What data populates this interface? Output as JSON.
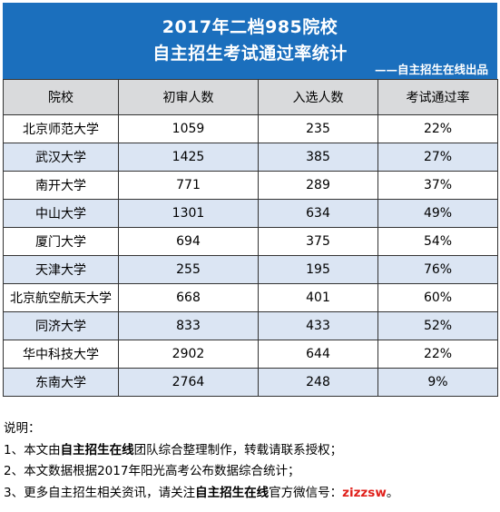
{
  "header": {
    "title_line1": "2017年二档985院校",
    "title_line2": "自主招生考试通过率统计",
    "credit": "——自主招生在线出品",
    "background_color": "#1b6fbd"
  },
  "table": {
    "columns": [
      "院校",
      "初审人数",
      "入选人数",
      "考试通过率"
    ],
    "rows": [
      [
        "北京师范大学",
        "1059",
        "235",
        "22%"
      ],
      [
        "武汉大学",
        "1425",
        "385",
        "27%"
      ],
      [
        "南开大学",
        "771",
        "289",
        "37%"
      ],
      [
        "中山大学",
        "1301",
        "634",
        "49%"
      ],
      [
        "厦门大学",
        "694",
        "375",
        "54%"
      ],
      [
        "天津大学",
        "255",
        "195",
        "76%"
      ],
      [
        "北京航空航天大学",
        "668",
        "401",
        "60%"
      ],
      [
        "同济大学",
        "833",
        "433",
        "52%"
      ],
      [
        "华中科技大学",
        "2902",
        "644",
        "22%"
      ],
      [
        "东南大学",
        "2764",
        "248",
        "9%"
      ]
    ],
    "header_color": "#d9dadc",
    "stripe_color": "#dbe5f3"
  },
  "notes": {
    "heading": "说明：",
    "line1": {
      "prefix": "1、本文由",
      "bold": "自主招生在线",
      "suffix": "团队综合整理制作，转载请联系授权；"
    },
    "line2": {
      "text": "2、本文数据根据2017年阳光高考公布数据综合统计；"
    },
    "line3": {
      "prefix": "3、更多自主招生相关资讯，请关注",
      "bold": "自主招生在线",
      "middle": "官方微信号：",
      "wechat": "zizzsw",
      "end": "。"
    },
    "accent_color": "#e0201b"
  }
}
